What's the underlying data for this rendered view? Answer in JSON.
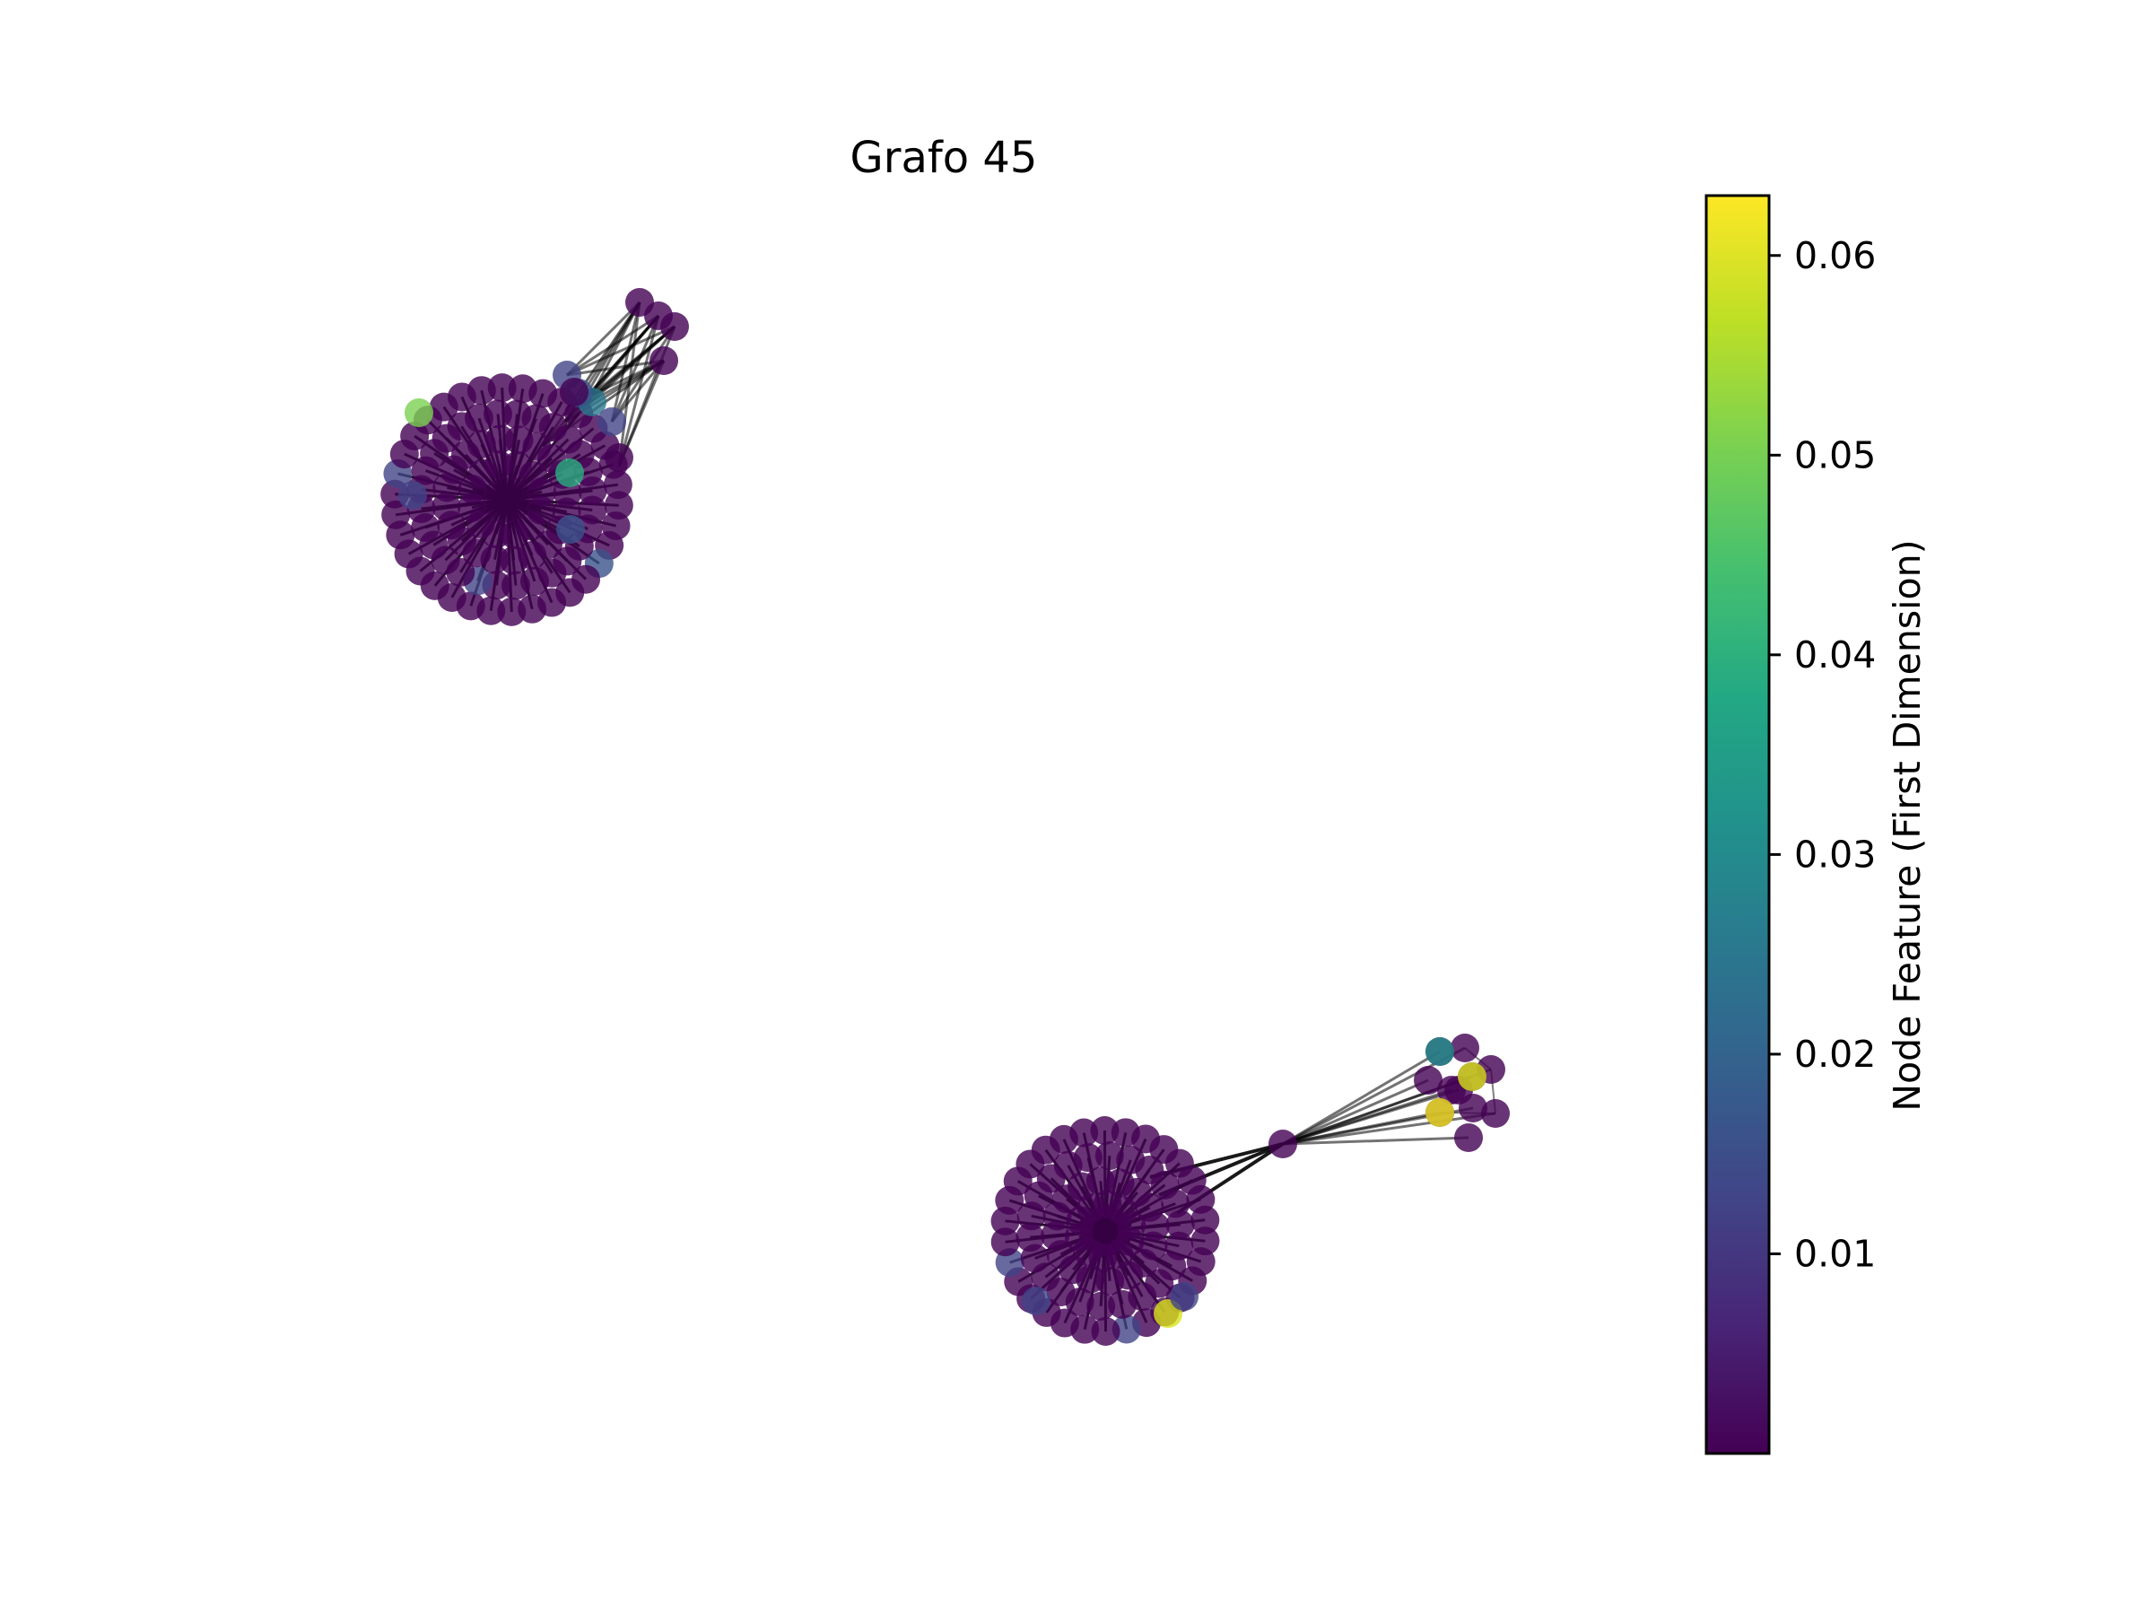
{
  "title": "Grafo 45",
  "colorbar": {
    "label": "Node Feature (First Dimension)",
    "colormap": "viridis",
    "vmin": 0.0,
    "vmax": 0.063,
    "ticks": [
      0.01,
      0.02,
      0.03,
      0.04,
      0.05,
      0.06
    ],
    "tick_labels": [
      "0.01",
      "0.02",
      "0.03",
      "0.04",
      "0.05",
      "0.06"
    ]
  },
  "graph": {
    "node_alpha": 0.8,
    "edge_color": "#000000",
    "node_colors_note": "viridis colormap by node feature value"
  }
}
